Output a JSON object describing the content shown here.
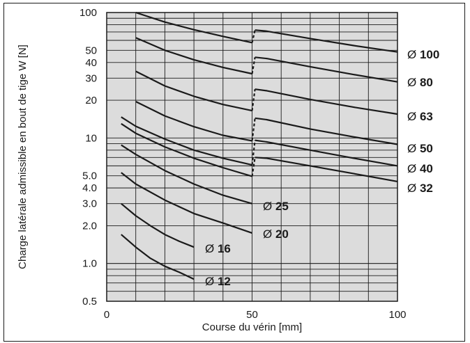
{
  "chart_data": {
    "type": "line",
    "title": "",
    "xlabel": "Course du vérin [mm]",
    "ylabel": "Charge latérale admissible en bout de tige W [N]",
    "xlim": [
      0,
      100
    ],
    "ylim": [
      0.5,
      100
    ],
    "y_scale": "log",
    "grid": true,
    "x_ticks": [
      0,
      50,
      100
    ],
    "y_ticks": [
      {
        "value": 0.5,
        "label": "0.5"
      },
      {
        "value": 1,
        "label": "1.0"
      },
      {
        "value": 2,
        "label": "2.0"
      },
      {
        "value": 3,
        "label": "3.0"
      },
      {
        "value": 4,
        "label": "4.0"
      },
      {
        "value": 5,
        "label": "5.0"
      },
      {
        "value": 10,
        "label": "10"
      },
      {
        "value": 20,
        "label": "20"
      },
      {
        "value": 30,
        "label": "30"
      },
      {
        "value": 40,
        "label": "40"
      },
      {
        "value": 50,
        "label": "50"
      },
      {
        "value": 100,
        "label": "100"
      }
    ],
    "series": [
      {
        "name": "Ø 12",
        "symbol": "Ø",
        "size": "12",
        "segments": [
          [
            [
              5,
              1.7
            ],
            [
              10,
              1.35
            ],
            [
              15,
              1.1
            ],
            [
              20,
              0.95
            ],
            [
              25,
              0.85
            ],
            [
              30,
              0.75
            ]
          ]
        ]
      },
      {
        "name": "Ø 16",
        "symbol": "Ø",
        "size": "16",
        "segments": [
          [
            [
              5,
              3.0
            ],
            [
              10,
              2.4
            ],
            [
              15,
              2.0
            ],
            [
              20,
              1.7
            ],
            [
              25,
              1.5
            ],
            [
              30,
              1.35
            ]
          ]
        ]
      },
      {
        "name": "Ø 20",
        "symbol": "Ø",
        "size": "20",
        "segments": [
          [
            [
              5,
              5.3
            ],
            [
              10,
              4.3
            ],
            [
              20,
              3.2
            ],
            [
              30,
              2.5
            ],
            [
              40,
              2.1
            ],
            [
              50,
              1.75
            ]
          ]
        ]
      },
      {
        "name": "Ø 25",
        "symbol": "Ø",
        "size": "25",
        "segments": [
          [
            [
              5,
              8.8
            ],
            [
              10,
              7.4
            ],
            [
              20,
              5.5
            ],
            [
              30,
              4.3
            ],
            [
              40,
              3.5
            ],
            [
              50,
              3.0
            ]
          ]
        ]
      },
      {
        "name": "Ø 32",
        "symbol": "Ø",
        "size": "32",
        "segments": [
          [
            [
              5,
              13.0
            ],
            [
              10,
              10.9
            ],
            [
              20,
              8.5
            ],
            [
              30,
              6.9
            ],
            [
              40,
              5.8
            ],
            [
              50,
              4.95
            ]
          ],
          [
            [
              51,
              7.0
            ],
            [
              55,
              6.9
            ],
            [
              70,
              6.0
            ],
            [
              85,
              5.2
            ],
            [
              100,
              4.5
            ]
          ]
        ]
      },
      {
        "name": "Ø 40",
        "symbol": "Ø",
        "size": "40",
        "segments": [
          [
            [
              5,
              14.7
            ],
            [
              10,
              12.4
            ],
            [
              20,
              9.8
            ],
            [
              30,
              8.0
            ],
            [
              40,
              6.9
            ],
            [
              50,
              6.1
            ]
          ],
          [
            [
              51,
              9.6
            ],
            [
              55,
              9.3
            ],
            [
              70,
              8.0
            ],
            [
              85,
              6.9
            ],
            [
              100,
              6.0
            ]
          ]
        ]
      },
      {
        "name": "Ø 50",
        "symbol": "Ø",
        "size": "50",
        "segments": [
          [
            [
              10,
              19.5
            ],
            [
              20,
              15.0
            ],
            [
              30,
              12.3
            ],
            [
              40,
              10.5
            ],
            [
              50,
              9.5
            ]
          ],
          [
            [
              51,
              14.4
            ],
            [
              55,
              14.0
            ],
            [
              70,
              11.8
            ],
            [
              85,
              10.2
            ],
            [
              100,
              8.9
            ]
          ]
        ]
      },
      {
        "name": "Ø 63",
        "symbol": "Ø",
        "size": "63",
        "segments": [
          [
            [
              10,
              34
            ],
            [
              20,
              26
            ],
            [
              30,
              21.5
            ],
            [
              40,
              18.5
            ],
            [
              50,
              16.5
            ]
          ],
          [
            [
              51,
              24.5
            ],
            [
              55,
              23.8
            ],
            [
              70,
              20.3
            ],
            [
              85,
              17.6
            ],
            [
              100,
              15.5
            ]
          ]
        ]
      },
      {
        "name": "Ø 80",
        "symbol": "Ø",
        "size": "80",
        "segments": [
          [
            [
              10,
              63
            ],
            [
              20,
              50
            ],
            [
              30,
              42
            ],
            [
              40,
              36.5
            ],
            [
              50,
              32.5
            ]
          ],
          [
            [
              51,
              44
            ],
            [
              55,
              43
            ],
            [
              70,
              37
            ],
            [
              85,
              32
            ],
            [
              100,
              28
            ]
          ]
        ]
      },
      {
        "name": "Ø 100",
        "symbol": "Ø",
        "size": "100",
        "segments": [
          [
            [
              10,
              100
            ],
            [
              20,
              84
            ],
            [
              30,
              73
            ],
            [
              40,
              64.5
            ],
            [
              50,
              57.5
            ]
          ],
          [
            [
              51,
              72.5
            ],
            [
              55,
              71
            ],
            [
              70,
              62
            ],
            [
              85,
              54.5
            ],
            [
              100,
              48.5
            ]
          ]
        ]
      }
    ],
    "transition": {
      "x": 50,
      "style": "dashed"
    }
  }
}
